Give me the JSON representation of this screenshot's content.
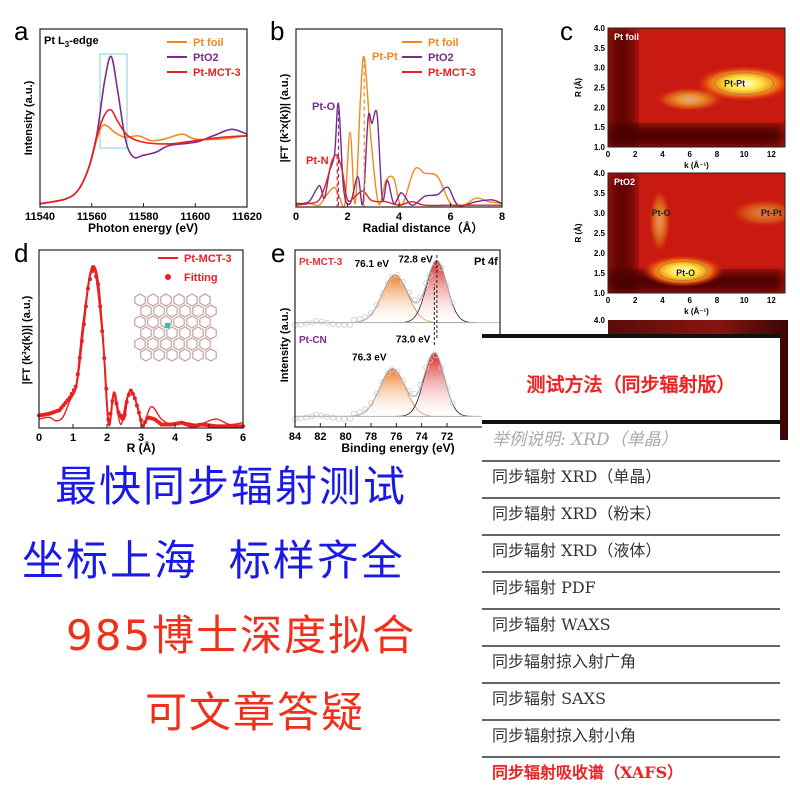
{
  "panels": {
    "a": {
      "letter": "a",
      "inset_label": "Pt L3-edge",
      "xlabel": "Photon energy (eV)",
      "ylabel": "Intensity (a.u.)",
      "xticks": [
        11540,
        11560,
        11580,
        11600,
        11620
      ],
      "xlim": [
        11540,
        11620
      ],
      "legend": [
        "Pt foil",
        "PtO2",
        "Pt-MCT-3"
      ]
    },
    "b": {
      "letter": "b",
      "xlabel": "Radial distance（Å）",
      "ylabel": "|FT (k³x(k))| (a.u.)",
      "xticks": [
        0,
        2,
        4,
        6,
        8
      ],
      "xlim": [
        0,
        8
      ],
      "legend": [
        "Pt foil",
        "PtO2",
        "Pt-MCT-3"
      ],
      "annotations": [
        "Pt-Pt",
        "Pt-O",
        "Pt-N"
      ]
    },
    "c": {
      "letter": "c",
      "ylabel": "R (Å)",
      "xlabel": "k (Å⁻¹)",
      "yticks": [
        "1.0",
        "1.5",
        "2.0",
        "2.5",
        "3.0",
        "3.5",
        "4.0"
      ],
      "xticks": [
        0,
        2,
        4,
        6,
        8,
        10,
        12
      ],
      "maps": [
        {
          "title": "Pt foil",
          "labels": [
            {
              "text": "Pt-Pt",
              "k": 9.3,
              "R": 2.6
            }
          ],
          "blobs": [
            {
              "k": 10,
              "R": 2.6,
              "rk": 3.6,
              "rR": 0.45,
              "i": 1
            },
            {
              "k": 6,
              "R": 2.2,
              "rk": 2.5,
              "rR": 0.3,
              "i": 0.6
            }
          ]
        },
        {
          "title": "PtO2",
          "labels": [
            {
              "text": "Pt-O",
              "k": 3.9,
              "R": 3.0
            },
            {
              "text": "Pt-Pt",
              "k": 12,
              "R": 3.0
            },
            {
              "text": "Pt-O",
              "k": 5.7,
              "R": 1.5
            }
          ],
          "blobs": [
            {
              "k": 5.5,
              "R": 1.55,
              "rk": 3,
              "rR": 0.4,
              "i": 1
            },
            {
              "k": 3.8,
              "R": 2.8,
              "rk": 0.8,
              "rR": 0.8,
              "i": 0.5
            },
            {
              "k": 11.5,
              "R": 3.0,
              "rk": 2.5,
              "rR": 0.35,
              "i": 0.4
            }
          ]
        }
      ],
      "third_map_top_tick": "4.0"
    },
    "d": {
      "letter": "d",
      "xlabel": "R (Å)",
      "ylabel": "|FT (k³x(k))| (a.u.)",
      "xticks": [
        0,
        1,
        2,
        3,
        4,
        5,
        6
      ],
      "xlim": [
        0,
        6
      ],
      "legend": [
        "Pt-MCT-3",
        "Fitting"
      ]
    },
    "e": {
      "letter": "e",
      "xlabel": "Binding energy (eV)",
      "ylabel": "Intensity (a.u.)",
      "xticks": [
        84,
        82,
        80,
        78,
        76,
        74,
        72
      ],
      "xlim": [
        84,
        72
      ],
      "corner_label": "Pt 4f",
      "spectra": [
        {
          "name": "Pt-MCT-3",
          "color": "#e83030",
          "baseline": 0.59,
          "peaks": [
            {
              "label": "76.1 eV",
              "center": 76.1,
              "height": 0.27,
              "sigma": 1.0
            },
            {
              "label": "72.8 eV",
              "center": 72.8,
              "height": 0.35,
              "sigma": 0.8
            }
          ]
        },
        {
          "name": "Pt-CN",
          "color": "#7a2a8a",
          "baseline": 0.06,
          "peaks": [
            {
              "label": "76.3 eV",
              "center": 76.3,
              "height": 0.27,
              "sigma": 1.0
            },
            {
              "label": "73.0 eV",
              "center": 73.0,
              "height": 0.36,
              "sigma": 0.8
            }
          ]
        }
      ]
    }
  },
  "colors": {
    "foil": "#f08a1e",
    "pto2": "#7b2a8e",
    "mct": "#e82020",
    "heat_dark": "#4a0606",
    "heat_mid": "#d42010",
    "heat_hot": "#fff8c0"
  },
  "chart_data": [
    {
      "type": "line",
      "panel": "a",
      "xlim": [
        11540,
        11620
      ],
      "series": [
        {
          "name": "Pt foil",
          "x": [
            11540,
            11550,
            11555,
            11559,
            11562,
            11564,
            11566,
            11569,
            11573,
            11578,
            11583,
            11588,
            11595,
            11600,
            11610,
            11620
          ],
          "y": [
            0.02,
            0.05,
            0.11,
            0.25,
            0.42,
            0.5,
            0.5,
            0.46,
            0.43,
            0.44,
            0.41,
            0.42,
            0.45,
            0.42,
            0.42,
            0.44
          ]
        },
        {
          "name": "PtO2",
          "x": [
            11540,
            11550,
            11555,
            11559,
            11562,
            11565,
            11567.5,
            11570,
            11573,
            11576,
            11580,
            11585,
            11590,
            11600,
            11607,
            11614,
            11620
          ],
          "y": [
            0.02,
            0.05,
            0.11,
            0.25,
            0.45,
            0.78,
            0.93,
            0.72,
            0.42,
            0.31,
            0.32,
            0.34,
            0.38,
            0.4,
            0.44,
            0.48,
            0.45
          ]
        },
        {
          "name": "Pt-MCT-3",
          "x": [
            11540,
            11550,
            11555,
            11559,
            11562,
            11565,
            11567.5,
            11570,
            11574,
            11580,
            11590,
            11600,
            11610,
            11620
          ],
          "y": [
            0.02,
            0.05,
            0.11,
            0.25,
            0.44,
            0.57,
            0.6,
            0.53,
            0.44,
            0.4,
            0.39,
            0.41,
            0.43,
            0.44
          ]
        }
      ]
    },
    {
      "type": "line",
      "panel": "b",
      "xlim": [
        0,
        8
      ],
      "series": [
        {
          "name": "Pt foil",
          "x": [
            0,
            0.5,
            0.9,
            1.2,
            1.5,
            1.7,
            1.9,
            2.1,
            2.3,
            2.5,
            2.65,
            2.9,
            3.2,
            3.5,
            3.8,
            4.1,
            4.6,
            5,
            5.5,
            6,
            6.5,
            7,
            7.5,
            8
          ],
          "y": [
            0.01,
            0.02,
            0.01,
            0.07,
            0.11,
            0.05,
            0.02,
            0.42,
            0.02,
            0.6,
            0.84,
            0.4,
            0.02,
            0.15,
            0.16,
            0.01,
            0.21,
            0.19,
            0.17,
            0.02,
            0.01,
            0.05,
            0.03,
            0.02
          ]
        },
        {
          "name": "PtO2",
          "x": [
            0,
            0.5,
            0.9,
            1.1,
            1.3,
            1.5,
            1.65,
            1.85,
            2.1,
            2.4,
            2.6,
            2.8,
            2.95,
            3.15,
            3.35,
            3.55,
            3.8,
            4.1,
            4.5,
            5,
            5.5,
            5.9,
            6.3,
            7,
            7.6,
            8
          ],
          "y": [
            0.02,
            0.03,
            0.12,
            0.05,
            0.2,
            0.3,
            0.58,
            0.1,
            0.02,
            0.17,
            0.02,
            0.5,
            0.47,
            0.52,
            0.05,
            0.15,
            0.02,
            0.08,
            0.01,
            0.06,
            0.07,
            0.11,
            0.01,
            0.03,
            0.04,
            0.02
          ]
        },
        {
          "name": "Pt-MCT-3",
          "x": [
            0,
            0.5,
            0.9,
            1.2,
            1.4,
            1.6,
            1.8,
            2.0,
            2.3,
            2.6,
            2.9,
            3.2,
            3.5,
            4,
            4.5,
            5,
            6,
            7,
            8
          ],
          "y": [
            0.01,
            0.02,
            0.04,
            0.15,
            0.26,
            0.29,
            0.2,
            0.04,
            0.06,
            0.09,
            0.04,
            0.03,
            0.03,
            0.01,
            0.03,
            0.01,
            0.01,
            0.01,
            0.01
          ]
        }
      ]
    },
    {
      "type": "line+scatter",
      "panel": "d",
      "xlim": [
        0,
        6
      ],
      "series": [
        {
          "name": "Pt-MCT-3",
          "x": [
            0,
            0.3,
            0.5,
            0.7,
            0.9,
            1.1,
            1.3,
            1.6,
            1.9,
            2.05,
            2.2,
            2.4,
            2.55,
            2.7,
            2.9,
            3.05,
            3.3,
            3.6,
            3.9,
            4.3,
            4.7,
            5.2,
            5.6,
            6
          ],
          "y": [
            0.05,
            0.06,
            0.04,
            0.06,
            0.15,
            0.25,
            0.6,
            0.91,
            0.45,
            0.02,
            0.18,
            0.02,
            0.14,
            0.21,
            0.12,
            0.01,
            0.12,
            0.05,
            0.02,
            0.03,
            0.02,
            0.05,
            0.02,
            0.03
          ]
        },
        {
          "name": "Fitting",
          "x": [
            0,
            0.3,
            0.6,
            0.9,
            1.1,
            1.3,
            1.45,
            1.6,
            1.75,
            1.9,
            2.05,
            2.2,
            2.35,
            2.5,
            2.6,
            2.7,
            2.8,
            2.95,
            3.05,
            3.2,
            3.4,
            3.6,
            3.9,
            4.2,
            4.5,
            4.8,
            5.2,
            5.6,
            6
          ],
          "y": [
            0.07,
            0.08,
            0.1,
            0.17,
            0.24,
            0.55,
            0.8,
            0.91,
            0.8,
            0.45,
            0.02,
            0.2,
            0.08,
            0.05,
            0.17,
            0.21,
            0.18,
            0.08,
            0.01,
            0.06,
            0.05,
            0.02,
            0.02,
            0.03,
            0.01,
            0.02,
            0.01,
            0.01,
            0.01
          ]
        }
      ]
    }
  ],
  "ad": {
    "line1": "最快同步辐射测试",
    "line2": "坐标上海  标样齐全",
    "line3": "985博士深度拟合",
    "line4": "可文章答疑"
  },
  "menu": {
    "title": "测试方法（同步辐射版）",
    "example": "举例说明: XRD（单晶）",
    "items": [
      "同步辐射 XRD（单晶）",
      "同步辐射 XRD（粉末）",
      "同步辐射 XRD（液体）",
      "同步辐射 PDF",
      "同步辐射 WAXS",
      "同步辐射掠入射广角",
      "同步辐射 SAXS",
      "同步辐射掠入射小角",
      "同步辐射吸收谱（XAFS）"
    ],
    "active_index": 8
  }
}
